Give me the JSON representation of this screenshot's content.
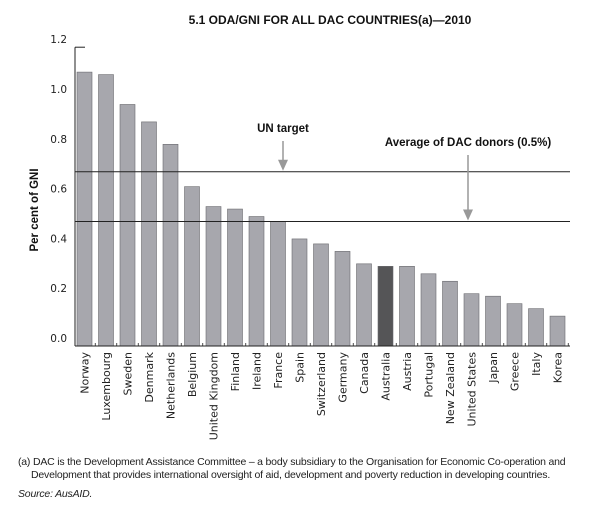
{
  "chart_data": {
    "type": "bar",
    "title": "5.1   ODA/GNI FOR ALL DAC COUNTRIES(a)—2010",
    "ylabel": "Per cent of GNI",
    "xlabel": "",
    "ylim": [
      0,
      1.2
    ],
    "yticks": [
      "0.0",
      "0.2",
      "0.4",
      "0.6",
      "0.8",
      "1.0",
      "1.2"
    ],
    "grid": false,
    "categories": [
      "Norway",
      "Luxembourg",
      "Sweden",
      "Denmark",
      "Netherlands",
      "Belgium",
      "United Kingdom",
      "Finland",
      "Ireland",
      "France",
      "Spain",
      "Switzerland",
      "Germany",
      "Canada",
      "Australia",
      "Austria",
      "Portugal",
      "New Zealand",
      "United States",
      "Japan",
      "Greece",
      "Italy",
      "Korea"
    ],
    "values": [
      1.1,
      1.09,
      0.97,
      0.9,
      0.81,
      0.64,
      0.56,
      0.55,
      0.52,
      0.5,
      0.43,
      0.41,
      0.38,
      0.33,
      0.32,
      0.32,
      0.29,
      0.26,
      0.21,
      0.2,
      0.17,
      0.15,
      0.12
    ],
    "highlight": "Australia",
    "colors": {
      "bar": "#a7a7ad",
      "highlight": "#555557",
      "bar_edge": "#6a6a6e",
      "line": "#222222",
      "arrow": "#999999"
    },
    "reference_lines": [
      {
        "label": "UN target",
        "value": 0.7
      },
      {
        "label": "Average of DAC donors (0.5%)",
        "value": 0.5
      }
    ]
  },
  "footnote": "(a) DAC is the Development Assistance Committee – a body subsidiary to the Organisation for Economic Co-operation and",
  "footnote_cont": "Development that provides international oversight of aid, development and poverty reduction in developing countries.",
  "source": "Source: AusAID."
}
